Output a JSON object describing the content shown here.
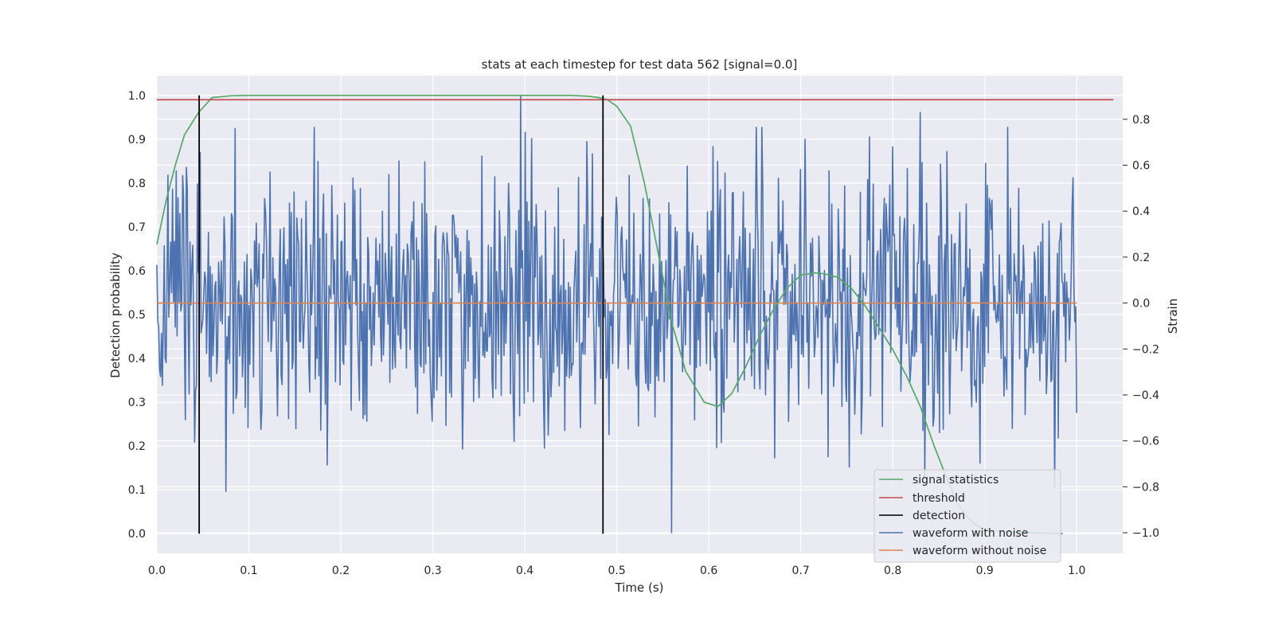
{
  "chart_data": {
    "type": "line",
    "title": "stats at each timestep for test data 562 [signal=0.0]",
    "xlabel": "Time (s)",
    "ylabel_left": "Detection probability",
    "ylabel_right": "Strain",
    "xlim": [
      0.0,
      1.05
    ],
    "ylim_left": [
      -0.045,
      1.045
    ],
    "ylim_right": [
      -1.09,
      0.99
    ],
    "x_ticks": [
      "0.0",
      "0.1",
      "0.2",
      "0.3",
      "0.4",
      "0.5",
      "0.6",
      "0.7",
      "0.8",
      "0.9",
      "1.0"
    ],
    "y_left_ticks": [
      "0.0",
      "0.1",
      "0.2",
      "0.3",
      "0.4",
      "0.5",
      "0.6",
      "0.7",
      "0.8",
      "0.9",
      "1.0"
    ],
    "y_right_ticks": [
      "−1.0",
      "−0.8",
      "−0.6",
      "−0.4",
      "−0.2",
      "0.0",
      "0.2",
      "0.4",
      "0.6",
      "0.8"
    ],
    "grid": true,
    "legend_position": "lower-right",
    "colors": {
      "signal_statistics": "#55a868",
      "threshold": "#c44e52",
      "detection": "#000000",
      "waveform_with_noise": "#4c72b0",
      "waveform_without_noise": "#dd8452",
      "plot_background": "#eaeaf2",
      "grid": "#ffffff"
    },
    "series": [
      {
        "name": "signal statistics",
        "axis": "left",
        "x": [
          0.0,
          0.01,
          0.02,
          0.03,
          0.045,
          0.06,
          0.08,
          0.1,
          0.15,
          0.2,
          0.3,
          0.4,
          0.45,
          0.47,
          0.48,
          0.49,
          0.5,
          0.515,
          0.53,
          0.545,
          0.56,
          0.575,
          0.595,
          0.61,
          0.625,
          0.64,
          0.655,
          0.67,
          0.685,
          0.7,
          0.715,
          0.725,
          0.74,
          0.755,
          0.77,
          0.785,
          0.8,
          0.815,
          0.83,
          0.845,
          0.86,
          0.87,
          0.88,
          0.89,
          0.9,
          0.92,
          0.95,
          0.985
        ],
        "y": [
          0.66,
          0.76,
          0.84,
          0.91,
          0.96,
          0.995,
          0.999,
          1.0,
          1.0,
          1.0,
          1.0,
          1.0,
          1.0,
          0.998,
          0.995,
          0.99,
          0.975,
          0.93,
          0.8,
          0.64,
          0.48,
          0.37,
          0.3,
          0.29,
          0.32,
          0.38,
          0.45,
          0.51,
          0.56,
          0.59,
          0.595,
          0.593,
          0.585,
          0.56,
          0.52,
          0.47,
          0.42,
          0.36,
          0.29,
          0.2,
          0.12,
          0.07,
          0.04,
          0.02,
          0.01,
          0.005,
          0.002,
          0.0
        ]
      },
      {
        "name": "threshold",
        "axis": "left",
        "x": [
          0.0,
          1.04
        ],
        "y": [
          0.99,
          0.99
        ]
      },
      {
        "name": "detection",
        "axis": "left",
        "x_lines": [
          0.046,
          0.485
        ],
        "y_range": [
          0.0,
          1.0
        ]
      },
      {
        "name": "waveform with noise",
        "axis": "right",
        "x_range": [
          0.0,
          1.0
        ],
        "n_points": 1000,
        "approx_range": [
          -1.0,
          0.9
        ],
        "notable_points": [
          {
            "x": 0.395,
            "y": 0.9
          },
          {
            "x": 0.56,
            "y": -1.0
          },
          {
            "x": 0.075,
            "y": -0.82
          },
          {
            "x": 0.085,
            "y": 0.76
          },
          {
            "x": 0.83,
            "y": 0.83
          }
        ]
      },
      {
        "name": "waveform without noise",
        "axis": "right",
        "x": [
          0.0,
          1.0
        ],
        "y": [
          0.0,
          0.0
        ]
      }
    ]
  }
}
